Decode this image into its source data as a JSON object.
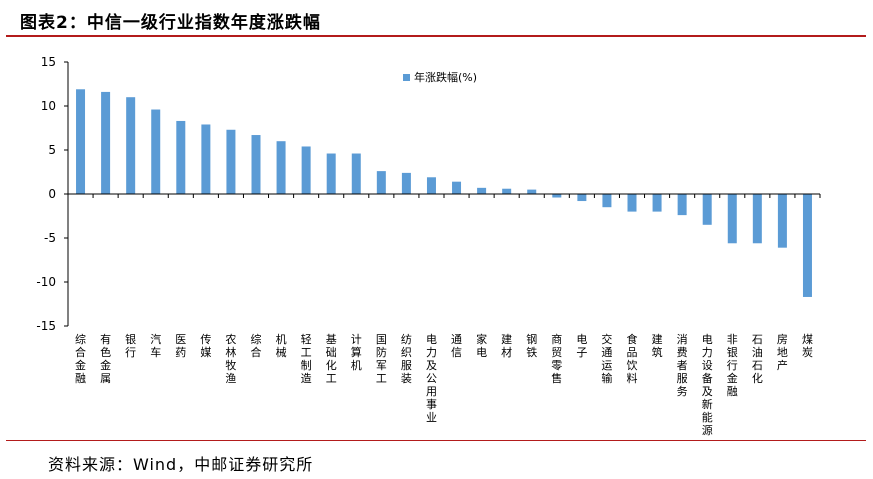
{
  "title": "图表2：中信一级行业指数年度涨跌幅",
  "source": "资料来源：Wind，中邮证券研究所",
  "colors": {
    "bar": "#5b9bd5",
    "rule": "#b31b1b",
    "axis": "#000000"
  },
  "chart_data": {
    "type": "bar",
    "title": "",
    "xlabel": "",
    "ylabel": "",
    "ylim": [
      -15,
      15
    ],
    "yticks": [
      15,
      10,
      5,
      0,
      -5,
      -10,
      -15
    ],
    "grid": false,
    "legend": "top-center",
    "categories": [
      "综合金融",
      "有色金属",
      "银行",
      "汽车",
      "医药",
      "传媒",
      "农林牧渔",
      "综合",
      "机械",
      "轻工制造",
      "基础化工",
      "计算机",
      "国防军工",
      "纺织服装",
      "电力及公用事业",
      "通信",
      "家电",
      "建材",
      "钢铁",
      "商贸零售",
      "电子",
      "交通运输",
      "食品饮料",
      "建筑",
      "消费者服务",
      "电力设备及新能源",
      "非银行金融",
      "石油石化",
      "房地产",
      "煤炭"
    ],
    "series": [
      {
        "name": "年涨跌幅(%)",
        "values": [
          11.9,
          11.6,
          11.0,
          9.6,
          8.3,
          7.9,
          7.3,
          6.7,
          6.0,
          5.4,
          4.6,
          4.6,
          2.6,
          2.4,
          1.9,
          1.4,
          0.7,
          0.6,
          0.5,
          -0.4,
          -0.8,
          -1.5,
          -2.0,
          -2.0,
          -2.4,
          -3.5,
          -5.6,
          -5.6,
          -6.1,
          -11.7
        ]
      }
    ]
  }
}
